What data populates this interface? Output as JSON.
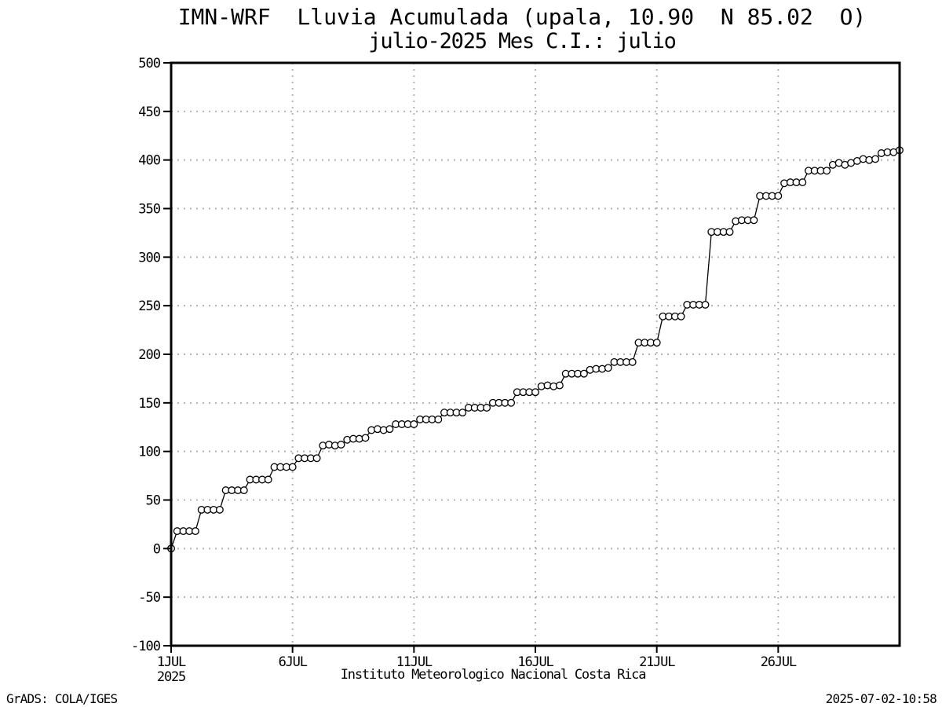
{
  "header": {
    "title_line1": "IMN-WRF  Lluvia Acumulada (upala, 10.90  N 85.02  O)",
    "title_line2": "julio-2025 Mes C.I.: julio"
  },
  "footer": {
    "x_caption": "Instituto Meteorologico Nacional Costa Rica",
    "credit": "GrADS: COLA/IGES",
    "timestamp": "2025-07-02-10:58"
  },
  "chart_data": {
    "type": "line",
    "title": "IMN-WRF  Lluvia Acumulada (upala, 10.90  N 85.02  O)",
    "subtitle": "julio-2025 Mes C.I.: julio",
    "xlabel": "Instituto Meteorologico Nacional Costa Rica",
    "ylabel": "",
    "ylim": [
      -100,
      500
    ],
    "y_ticks": [
      500,
      450,
      400,
      350,
      300,
      250,
      200,
      150,
      100,
      50,
      0,
      -50,
      -100
    ],
    "x_tick_labels": [
      "1JUL",
      "6JUL",
      "11JUL",
      "16JUL",
      "21JUL",
      "26JUL"
    ],
    "x_tick_days": [
      1,
      6,
      11,
      16,
      21,
      26
    ],
    "x_year_label": "2025",
    "x_range_days": [
      1,
      31
    ],
    "grid": "dotted",
    "legend": "none",
    "marker": "open-circle",
    "line_color": "#000000",
    "grid_color": "#b3b3b3",
    "series": [
      {
        "name": "Lluvia acumulada (mm)",
        "start": "1JUL2025 00:00",
        "interval_hours": 6,
        "points_per_day": 4,
        "values": [
          0,
          18,
          18,
          18,
          18,
          40,
          40,
          40,
          40,
          60,
          60,
          60,
          60,
          71,
          71,
          71,
          71,
          84,
          84,
          84,
          84,
          93,
          93,
          93,
          93,
          106,
          107,
          106,
          107,
          112,
          113,
          113,
          114,
          122,
          123,
          122,
          123,
          128,
          128,
          128,
          128,
          133,
          133,
          133,
          133,
          140,
          140,
          140,
          140,
          145,
          145,
          145,
          145,
          150,
          150,
          150,
          150,
          161,
          161,
          161,
          161,
          167,
          168,
          167,
          168,
          180,
          180,
          180,
          180,
          184,
          185,
          185,
          186,
          192,
          192,
          192,
          192,
          212,
          212,
          212,
          212,
          239,
          239,
          239,
          239,
          251,
          251,
          251,
          251,
          326,
          326,
          326,
          326,
          337,
          338,
          338,
          338,
          363,
          363,
          363,
          363,
          376,
          377,
          377,
          377,
          389,
          389,
          389,
          389,
          395,
          397,
          395,
          397,
          399,
          401,
          400,
          401,
          407,
          408,
          408,
          410
        ]
      }
    ]
  }
}
